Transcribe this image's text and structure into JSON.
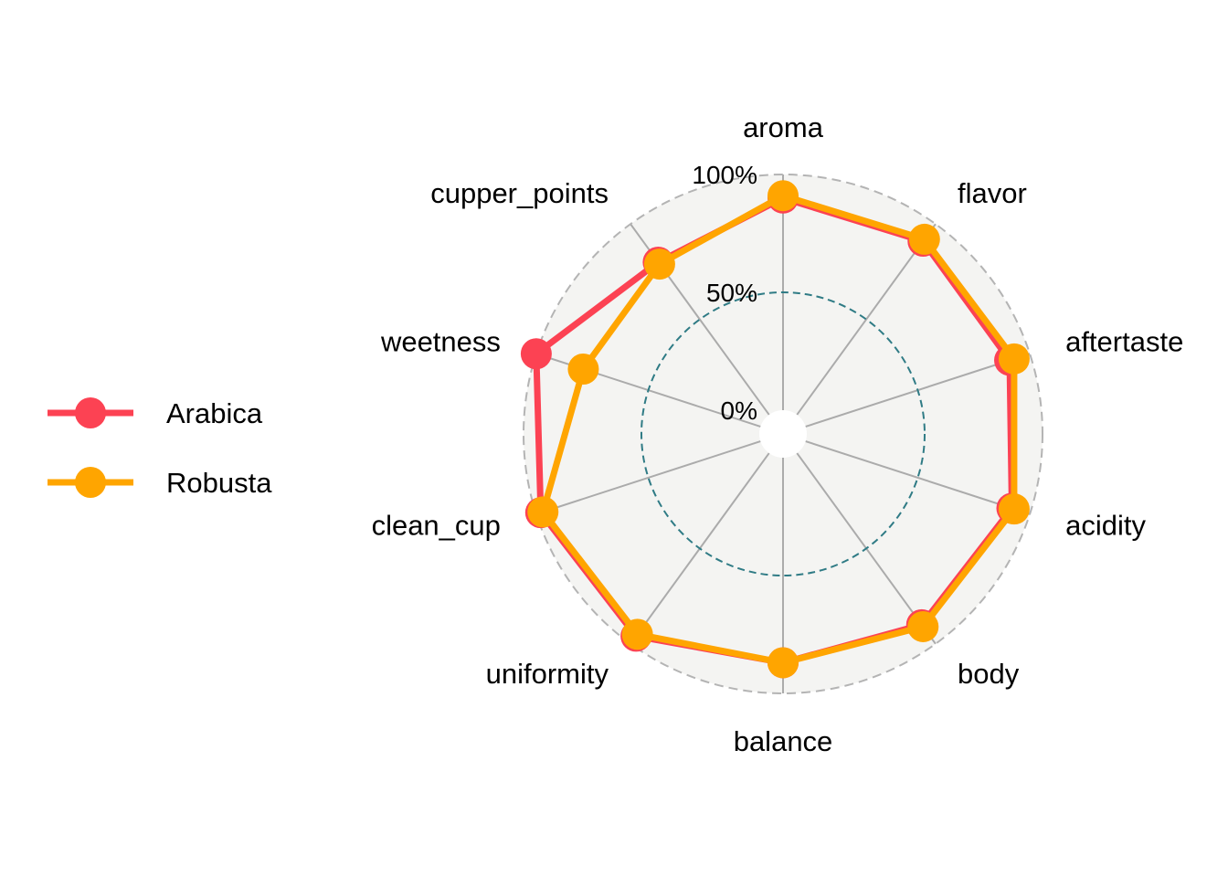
{
  "chart_data": {
    "type": "radar",
    "axes": [
      "aroma",
      "flavor",
      "aftertaste",
      "acidity",
      "body",
      "balance",
      "uniformity",
      "clean_cup",
      "sweetness",
      "cupper_points"
    ],
    "axis_display_labels": [
      "aroma",
      "flavor",
      "aftertaste",
      "acidity",
      "body",
      "balance",
      "uniformity",
      "clean_cup",
      "weetness",
      "cupper_points"
    ],
    "radial_ticks": [
      {
        "value": 0,
        "label": "0%"
      },
      {
        "value": 50,
        "label": "50%"
      },
      {
        "value": 100,
        "label": "100%"
      }
    ],
    "rlim": [
      0,
      100
    ],
    "series": [
      {
        "name": "Arabica",
        "color": "#FC4253",
        "values": [
          90,
          91,
          91,
          92,
          90,
          87,
          96,
          98,
          100,
          80
        ]
      },
      {
        "name": "Robusta",
        "color": "#FFA500",
        "values": [
          91,
          92,
          93,
          93,
          91,
          87,
          95,
          97,
          79,
          79
        ]
      }
    ],
    "legend": {
      "position": "left"
    }
  }
}
